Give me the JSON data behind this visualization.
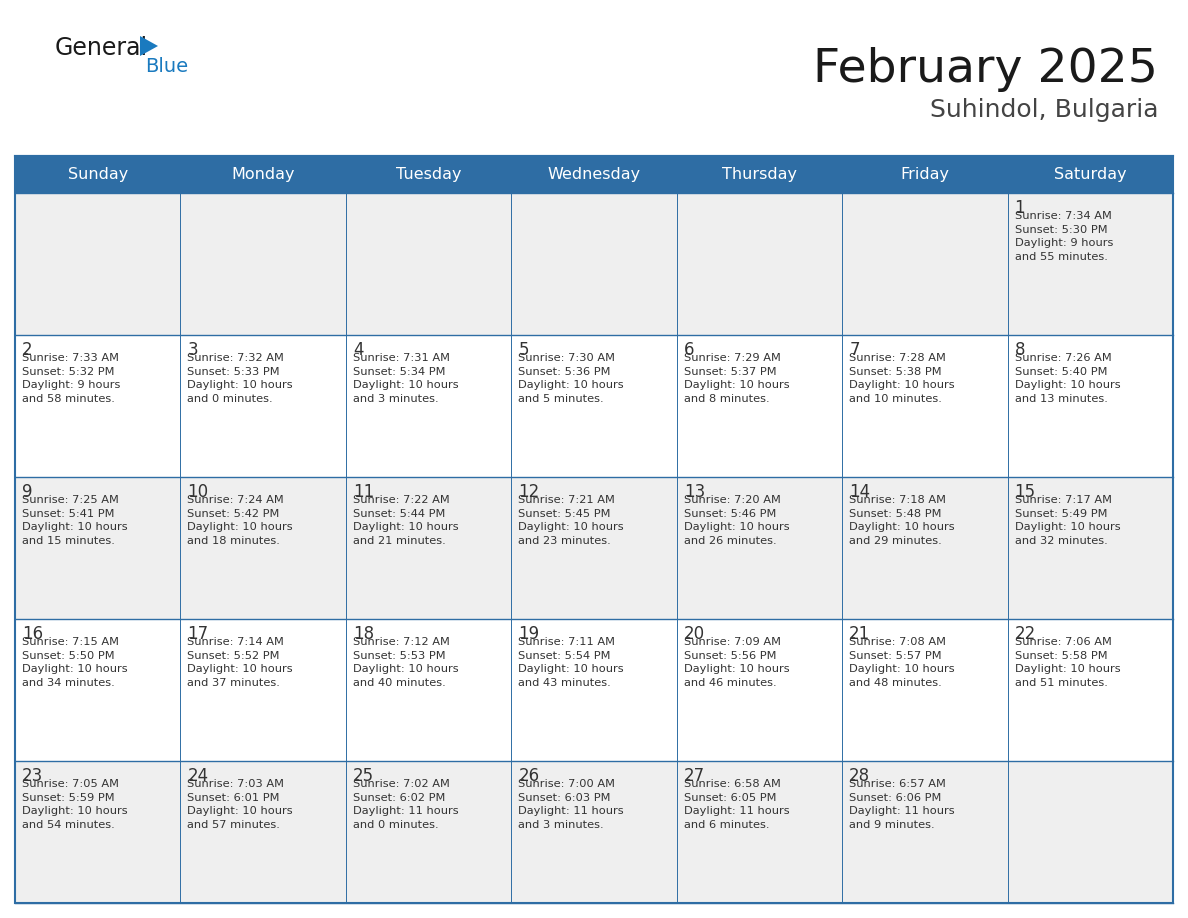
{
  "title": "February 2025",
  "subtitle": "Suhindol, Bulgaria",
  "days_of_week": [
    "Sunday",
    "Monday",
    "Tuesday",
    "Wednesday",
    "Thursday",
    "Friday",
    "Saturday"
  ],
  "header_bg": "#2E6DA4",
  "header_text": "#FFFFFF",
  "cell_bg_odd": "#EFEFEF",
  "cell_bg_even": "#FFFFFF",
  "text_color": "#333333",
  "day_num_color": "#333333",
  "border_color": "#2E6DA4",
  "title_color": "#1a1a1a",
  "subtitle_color": "#444444",
  "logo_black": "#1a1a1a",
  "logo_blue": "#1a7abf",
  "weeks": [
    [
      {
        "day": null,
        "info": null
      },
      {
        "day": null,
        "info": null
      },
      {
        "day": null,
        "info": null
      },
      {
        "day": null,
        "info": null
      },
      {
        "day": null,
        "info": null
      },
      {
        "day": null,
        "info": null
      },
      {
        "day": 1,
        "info": "Sunrise: 7:34 AM\nSunset: 5:30 PM\nDaylight: 9 hours\nand 55 minutes."
      }
    ],
    [
      {
        "day": 2,
        "info": "Sunrise: 7:33 AM\nSunset: 5:32 PM\nDaylight: 9 hours\nand 58 minutes."
      },
      {
        "day": 3,
        "info": "Sunrise: 7:32 AM\nSunset: 5:33 PM\nDaylight: 10 hours\nand 0 minutes."
      },
      {
        "day": 4,
        "info": "Sunrise: 7:31 AM\nSunset: 5:34 PM\nDaylight: 10 hours\nand 3 minutes."
      },
      {
        "day": 5,
        "info": "Sunrise: 7:30 AM\nSunset: 5:36 PM\nDaylight: 10 hours\nand 5 minutes."
      },
      {
        "day": 6,
        "info": "Sunrise: 7:29 AM\nSunset: 5:37 PM\nDaylight: 10 hours\nand 8 minutes."
      },
      {
        "day": 7,
        "info": "Sunrise: 7:28 AM\nSunset: 5:38 PM\nDaylight: 10 hours\nand 10 minutes."
      },
      {
        "day": 8,
        "info": "Sunrise: 7:26 AM\nSunset: 5:40 PM\nDaylight: 10 hours\nand 13 minutes."
      }
    ],
    [
      {
        "day": 9,
        "info": "Sunrise: 7:25 AM\nSunset: 5:41 PM\nDaylight: 10 hours\nand 15 minutes."
      },
      {
        "day": 10,
        "info": "Sunrise: 7:24 AM\nSunset: 5:42 PM\nDaylight: 10 hours\nand 18 minutes."
      },
      {
        "day": 11,
        "info": "Sunrise: 7:22 AM\nSunset: 5:44 PM\nDaylight: 10 hours\nand 21 minutes."
      },
      {
        "day": 12,
        "info": "Sunrise: 7:21 AM\nSunset: 5:45 PM\nDaylight: 10 hours\nand 23 minutes."
      },
      {
        "day": 13,
        "info": "Sunrise: 7:20 AM\nSunset: 5:46 PM\nDaylight: 10 hours\nand 26 minutes."
      },
      {
        "day": 14,
        "info": "Sunrise: 7:18 AM\nSunset: 5:48 PM\nDaylight: 10 hours\nand 29 minutes."
      },
      {
        "day": 15,
        "info": "Sunrise: 7:17 AM\nSunset: 5:49 PM\nDaylight: 10 hours\nand 32 minutes."
      }
    ],
    [
      {
        "day": 16,
        "info": "Sunrise: 7:15 AM\nSunset: 5:50 PM\nDaylight: 10 hours\nand 34 minutes."
      },
      {
        "day": 17,
        "info": "Sunrise: 7:14 AM\nSunset: 5:52 PM\nDaylight: 10 hours\nand 37 minutes."
      },
      {
        "day": 18,
        "info": "Sunrise: 7:12 AM\nSunset: 5:53 PM\nDaylight: 10 hours\nand 40 minutes."
      },
      {
        "day": 19,
        "info": "Sunrise: 7:11 AM\nSunset: 5:54 PM\nDaylight: 10 hours\nand 43 minutes."
      },
      {
        "day": 20,
        "info": "Sunrise: 7:09 AM\nSunset: 5:56 PM\nDaylight: 10 hours\nand 46 minutes."
      },
      {
        "day": 21,
        "info": "Sunrise: 7:08 AM\nSunset: 5:57 PM\nDaylight: 10 hours\nand 48 minutes."
      },
      {
        "day": 22,
        "info": "Sunrise: 7:06 AM\nSunset: 5:58 PM\nDaylight: 10 hours\nand 51 minutes."
      }
    ],
    [
      {
        "day": 23,
        "info": "Sunrise: 7:05 AM\nSunset: 5:59 PM\nDaylight: 10 hours\nand 54 minutes."
      },
      {
        "day": 24,
        "info": "Sunrise: 7:03 AM\nSunset: 6:01 PM\nDaylight: 10 hours\nand 57 minutes."
      },
      {
        "day": 25,
        "info": "Sunrise: 7:02 AM\nSunset: 6:02 PM\nDaylight: 11 hours\nand 0 minutes."
      },
      {
        "day": 26,
        "info": "Sunrise: 7:00 AM\nSunset: 6:03 PM\nDaylight: 11 hours\nand 3 minutes."
      },
      {
        "day": 27,
        "info": "Sunrise: 6:58 AM\nSunset: 6:05 PM\nDaylight: 11 hours\nand 6 minutes."
      },
      {
        "day": 28,
        "info": "Sunrise: 6:57 AM\nSunset: 6:06 PM\nDaylight: 11 hours\nand 9 minutes."
      },
      {
        "day": null,
        "info": null
      }
    ]
  ],
  "figsize": [
    11.88,
    9.18
  ],
  "dpi": 100
}
